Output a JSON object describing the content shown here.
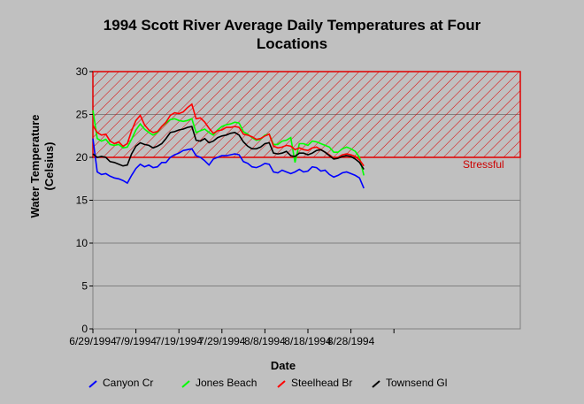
{
  "chart_data": {
    "type": "line",
    "title": "1994 Scott River Average Daily Temperatures at Four Locations",
    "title_lines": [
      "1994 Scott River Average Daily Temperatures at Four",
      "Locations"
    ],
    "xlabel": "Date",
    "ylabel": "Water Temperature (Celsius)",
    "ylabel_lines": [
      "Water Temperature",
      "(Celsius)"
    ],
    "ylim": [
      0,
      30
    ],
    "yticks": [
      "0",
      "5",
      "10",
      "15",
      "20",
      "25",
      "30"
    ],
    "xtick_labels": [
      "6/29/1994",
      "7/9/1994",
      "7/19/1994",
      "7/29/1994",
      "8/8/1994",
      "8/18/1994",
      "8/28/1994"
    ],
    "band": {
      "from": 20,
      "to": 30,
      "label": "Stressful",
      "color": "#ff0000"
    },
    "legend_position": "bottom",
    "series": [
      {
        "name": "Canyon Cr",
        "color": "#0000ff",
        "values": [
          22.2,
          18.3,
          18.0,
          18.1,
          17.8,
          17.6,
          17.5,
          17.3,
          17.0,
          17.9,
          18.7,
          19.2,
          18.9,
          19.1,
          18.8,
          18.9,
          19.4,
          19.4,
          20.0,
          20.3,
          20.5,
          20.8,
          20.9,
          21.0,
          20.2,
          20.0,
          19.6,
          19.1,
          19.8,
          20.0,
          20.2,
          20.2,
          20.3,
          20.4,
          20.3,
          19.5,
          19.3,
          18.9,
          18.8,
          19.0,
          19.3,
          19.2,
          18.3,
          18.2,
          18.5,
          18.3,
          18.1,
          18.3,
          18.6,
          18.3,
          18.4,
          18.9,
          18.8,
          18.4,
          18.5,
          18.0,
          17.7,
          17.9,
          18.2,
          18.3,
          18.1,
          17.9,
          17.6,
          16.4
        ]
      },
      {
        "name": "Jones Beach",
        "color": "#00ff00",
        "values": [
          25.5,
          22.2,
          21.9,
          22.1,
          21.5,
          21.4,
          21.5,
          21.1,
          21.2,
          22.1,
          23.2,
          23.9,
          23.3,
          22.9,
          22.6,
          22.9,
          23.6,
          24.0,
          24.4,
          24.5,
          24.3,
          24.2,
          24.3,
          24.5,
          22.9,
          23.1,
          23.3,
          22.9,
          22.6,
          23.2,
          23.6,
          23.8,
          23.9,
          24.1,
          24.0,
          23.0,
          22.7,
          22.3,
          22.0,
          22.1,
          22.6,
          22.7,
          21.5,
          21.5,
          21.9,
          22.0,
          22.3,
          19.4,
          21.6,
          21.6,
          21.4,
          21.9,
          21.8,
          21.6,
          21.4,
          21.2,
          20.6,
          20.6,
          21.0,
          21.2,
          21.0,
          20.7,
          20.0,
          17.9
        ]
      },
      {
        "name": "Steelhead Br",
        "color": "#ff0000",
        "values": [
          23.7,
          22.9,
          22.6,
          22.7,
          21.9,
          21.6,
          21.8,
          21.3,
          21.6,
          23.1,
          24.3,
          24.9,
          23.8,
          23.2,
          22.9,
          23.0,
          23.6,
          24.1,
          24.9,
          25.2,
          25.1,
          25.3,
          25.8,
          26.2,
          24.5,
          24.6,
          24.1,
          23.4,
          22.8,
          23.1,
          23.2,
          23.5,
          23.5,
          23.6,
          23.5,
          22.7,
          22.6,
          22.4,
          22.1,
          22.2,
          22.5,
          22.7,
          21.3,
          21.1,
          21.2,
          21.4,
          21.3,
          20.9,
          21.1,
          20.9,
          20.8,
          21.1,
          21.2,
          20.9,
          20.6,
          20.3,
          19.9,
          20.0,
          20.3,
          20.4,
          20.3,
          20.1,
          19.7,
          19.0
        ]
      },
      {
        "name": "Townsend Gl",
        "color": "#000000",
        "values": [
          20.4,
          20.0,
          20.1,
          20.0,
          19.5,
          19.4,
          19.2,
          19.0,
          19.1,
          20.4,
          21.3,
          21.7,
          21.5,
          21.4,
          21.1,
          21.3,
          21.6,
          22.2,
          22.9,
          23.0,
          23.2,
          23.3,
          23.5,
          23.6,
          22.0,
          21.9,
          22.2,
          21.7,
          21.9,
          22.3,
          22.5,
          22.6,
          22.8,
          22.9,
          22.6,
          21.8,
          21.3,
          21.0,
          21.0,
          21.2,
          21.6,
          21.7,
          20.5,
          20.4,
          20.5,
          20.7,
          20.2,
          20.1,
          20.5,
          20.5,
          20.3,
          20.5,
          20.8,
          20.9,
          20.6,
          20.2,
          19.8,
          19.9,
          20.1,
          20.2,
          20.1,
          19.8,
          19.4,
          18.6
        ]
      }
    ]
  }
}
